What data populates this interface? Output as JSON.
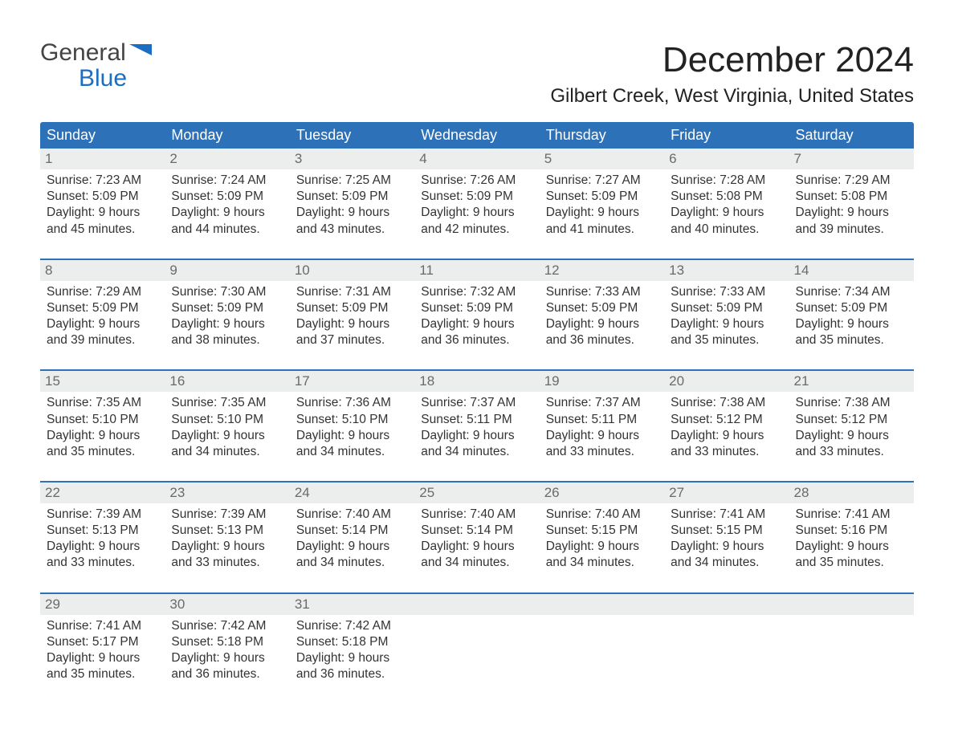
{
  "logo": {
    "top": "General",
    "bottom": "Blue"
  },
  "title": "December 2024",
  "location": "Gilbert Creek, West Virginia, United States",
  "colors": {
    "header_bg": "#2d71b8",
    "header_text": "#ffffff",
    "date_bg": "#eceded",
    "date_text": "#6a6a6a",
    "body_text": "#333333",
    "logo_accent": "#1b6ec2",
    "week_border": "#2d71b8",
    "page_bg": "#ffffff"
  },
  "dayNames": [
    "Sunday",
    "Monday",
    "Tuesday",
    "Wednesday",
    "Thursday",
    "Friday",
    "Saturday"
  ],
  "weeks": [
    [
      {
        "date": "1",
        "sunrise": "Sunrise: 7:23 AM",
        "sunset": "Sunset: 5:09 PM",
        "dl1": "Daylight: 9 hours",
        "dl2": "and 45 minutes."
      },
      {
        "date": "2",
        "sunrise": "Sunrise: 7:24 AM",
        "sunset": "Sunset: 5:09 PM",
        "dl1": "Daylight: 9 hours",
        "dl2": "and 44 minutes."
      },
      {
        "date": "3",
        "sunrise": "Sunrise: 7:25 AM",
        "sunset": "Sunset: 5:09 PM",
        "dl1": "Daylight: 9 hours",
        "dl2": "and 43 minutes."
      },
      {
        "date": "4",
        "sunrise": "Sunrise: 7:26 AM",
        "sunset": "Sunset: 5:09 PM",
        "dl1": "Daylight: 9 hours",
        "dl2": "and 42 minutes."
      },
      {
        "date": "5",
        "sunrise": "Sunrise: 7:27 AM",
        "sunset": "Sunset: 5:09 PM",
        "dl1": "Daylight: 9 hours",
        "dl2": "and 41 minutes."
      },
      {
        "date": "6",
        "sunrise": "Sunrise: 7:28 AM",
        "sunset": "Sunset: 5:08 PM",
        "dl1": "Daylight: 9 hours",
        "dl2": "and 40 minutes."
      },
      {
        "date": "7",
        "sunrise": "Sunrise: 7:29 AM",
        "sunset": "Sunset: 5:08 PM",
        "dl1": "Daylight: 9 hours",
        "dl2": "and 39 minutes."
      }
    ],
    [
      {
        "date": "8",
        "sunrise": "Sunrise: 7:29 AM",
        "sunset": "Sunset: 5:09 PM",
        "dl1": "Daylight: 9 hours",
        "dl2": "and 39 minutes."
      },
      {
        "date": "9",
        "sunrise": "Sunrise: 7:30 AM",
        "sunset": "Sunset: 5:09 PM",
        "dl1": "Daylight: 9 hours",
        "dl2": "and 38 minutes."
      },
      {
        "date": "10",
        "sunrise": "Sunrise: 7:31 AM",
        "sunset": "Sunset: 5:09 PM",
        "dl1": "Daylight: 9 hours",
        "dl2": "and 37 minutes."
      },
      {
        "date": "11",
        "sunrise": "Sunrise: 7:32 AM",
        "sunset": "Sunset: 5:09 PM",
        "dl1": "Daylight: 9 hours",
        "dl2": "and 36 minutes."
      },
      {
        "date": "12",
        "sunrise": "Sunrise: 7:33 AM",
        "sunset": "Sunset: 5:09 PM",
        "dl1": "Daylight: 9 hours",
        "dl2": "and 36 minutes."
      },
      {
        "date": "13",
        "sunrise": "Sunrise: 7:33 AM",
        "sunset": "Sunset: 5:09 PM",
        "dl1": "Daylight: 9 hours",
        "dl2": "and 35 minutes."
      },
      {
        "date": "14",
        "sunrise": "Sunrise: 7:34 AM",
        "sunset": "Sunset: 5:09 PM",
        "dl1": "Daylight: 9 hours",
        "dl2": "and 35 minutes."
      }
    ],
    [
      {
        "date": "15",
        "sunrise": "Sunrise: 7:35 AM",
        "sunset": "Sunset: 5:10 PM",
        "dl1": "Daylight: 9 hours",
        "dl2": "and 35 minutes."
      },
      {
        "date": "16",
        "sunrise": "Sunrise: 7:35 AM",
        "sunset": "Sunset: 5:10 PM",
        "dl1": "Daylight: 9 hours",
        "dl2": "and 34 minutes."
      },
      {
        "date": "17",
        "sunrise": "Sunrise: 7:36 AM",
        "sunset": "Sunset: 5:10 PM",
        "dl1": "Daylight: 9 hours",
        "dl2": "and 34 minutes."
      },
      {
        "date": "18",
        "sunrise": "Sunrise: 7:37 AM",
        "sunset": "Sunset: 5:11 PM",
        "dl1": "Daylight: 9 hours",
        "dl2": "and 34 minutes."
      },
      {
        "date": "19",
        "sunrise": "Sunrise: 7:37 AM",
        "sunset": "Sunset: 5:11 PM",
        "dl1": "Daylight: 9 hours",
        "dl2": "and 33 minutes."
      },
      {
        "date": "20",
        "sunrise": "Sunrise: 7:38 AM",
        "sunset": "Sunset: 5:12 PM",
        "dl1": "Daylight: 9 hours",
        "dl2": "and 33 minutes."
      },
      {
        "date": "21",
        "sunrise": "Sunrise: 7:38 AM",
        "sunset": "Sunset: 5:12 PM",
        "dl1": "Daylight: 9 hours",
        "dl2": "and 33 minutes."
      }
    ],
    [
      {
        "date": "22",
        "sunrise": "Sunrise: 7:39 AM",
        "sunset": "Sunset: 5:13 PM",
        "dl1": "Daylight: 9 hours",
        "dl2": "and 33 minutes."
      },
      {
        "date": "23",
        "sunrise": "Sunrise: 7:39 AM",
        "sunset": "Sunset: 5:13 PM",
        "dl1": "Daylight: 9 hours",
        "dl2": "and 33 minutes."
      },
      {
        "date": "24",
        "sunrise": "Sunrise: 7:40 AM",
        "sunset": "Sunset: 5:14 PM",
        "dl1": "Daylight: 9 hours",
        "dl2": "and 34 minutes."
      },
      {
        "date": "25",
        "sunrise": "Sunrise: 7:40 AM",
        "sunset": "Sunset: 5:14 PM",
        "dl1": "Daylight: 9 hours",
        "dl2": "and 34 minutes."
      },
      {
        "date": "26",
        "sunrise": "Sunrise: 7:40 AM",
        "sunset": "Sunset: 5:15 PM",
        "dl1": "Daylight: 9 hours",
        "dl2": "and 34 minutes."
      },
      {
        "date": "27",
        "sunrise": "Sunrise: 7:41 AM",
        "sunset": "Sunset: 5:15 PM",
        "dl1": "Daylight: 9 hours",
        "dl2": "and 34 minutes."
      },
      {
        "date": "28",
        "sunrise": "Sunrise: 7:41 AM",
        "sunset": "Sunset: 5:16 PM",
        "dl1": "Daylight: 9 hours",
        "dl2": "and 35 minutes."
      }
    ],
    [
      {
        "date": "29",
        "sunrise": "Sunrise: 7:41 AM",
        "sunset": "Sunset: 5:17 PM",
        "dl1": "Daylight: 9 hours",
        "dl2": "and 35 minutes."
      },
      {
        "date": "30",
        "sunrise": "Sunrise: 7:42 AM",
        "sunset": "Sunset: 5:18 PM",
        "dl1": "Daylight: 9 hours",
        "dl2": "and 36 minutes."
      },
      {
        "date": "31",
        "sunrise": "Sunrise: 7:42 AM",
        "sunset": "Sunset: 5:18 PM",
        "dl1": "Daylight: 9 hours",
        "dl2": "and 36 minutes."
      },
      {
        "empty": true
      },
      {
        "empty": true
      },
      {
        "empty": true
      },
      {
        "empty": true
      }
    ]
  ]
}
